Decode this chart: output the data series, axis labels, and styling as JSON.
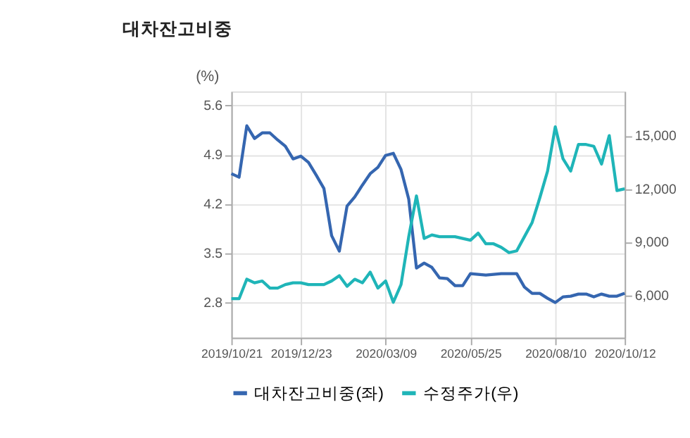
{
  "chart_data": {
    "type": "line",
    "title": "대차잔고비중",
    "ylabel": "(%)",
    "x": [
      "2019-10-21",
      "2019-10-28",
      "2019-11-04",
      "2019-11-11",
      "2019-11-18",
      "2019-11-25",
      "2019-12-02",
      "2019-12-09",
      "2019-12-16",
      "2019-12-23",
      "2019-12-30",
      "2020-01-06",
      "2020-01-13",
      "2020-01-20",
      "2020-01-27",
      "2020-02-03",
      "2020-02-10",
      "2020-02-17",
      "2020-02-24",
      "2020-03-02",
      "2020-03-09",
      "2020-03-16",
      "2020-03-23",
      "2020-03-30",
      "2020-04-06",
      "2020-04-13",
      "2020-04-20",
      "2020-04-27",
      "2020-05-04",
      "2020-05-11",
      "2020-05-18",
      "2020-05-25",
      "2020-06-01",
      "2020-06-08",
      "2020-06-15",
      "2020-06-22",
      "2020-06-29",
      "2020-07-06",
      "2020-07-13",
      "2020-07-20",
      "2020-07-27",
      "2020-08-03",
      "2020-08-10",
      "2020-08-17",
      "2020-08-24",
      "2020-08-31",
      "2020-09-07",
      "2020-09-14",
      "2020-09-21",
      "2020-09-28",
      "2020-10-05",
      "2020-10-12"
    ],
    "series": [
      {
        "name": "대차잔고비중(좌)",
        "color": "#3566b0",
        "values": [
          4.63,
          4.58,
          5.31,
          5.13,
          5.21,
          5.21,
          5.11,
          5.02,
          4.84,
          4.88,
          4.79,
          4.61,
          4.42,
          3.75,
          3.53,
          4.17,
          4.3,
          4.47,
          4.63,
          4.72,
          4.89,
          4.92,
          4.69,
          4.27,
          3.29,
          3.36,
          3.3,
          3.15,
          3.14,
          3.04,
          3.04,
          3.21,
          3.2,
          3.19,
          3.2,
          3.21,
          3.21,
          3.21,
          3.02,
          2.93,
          2.93,
          2.86,
          2.8,
          2.88,
          2.89,
          2.92,
          2.92,
          2.88,
          2.92,
          2.89,
          2.89,
          2.93
        ]
      },
      {
        "name": "수정주가(우)",
        "color": "#1fb5b8",
        "axis": "y2",
        "values": [
          5800,
          5800,
          6900,
          6700,
          6800,
          6400,
          6400,
          6600,
          6700,
          6700,
          6600,
          6600,
          6600,
          6800,
          7100,
          6500,
          6900,
          6700,
          7300,
          6400,
          6800,
          5600,
          6600,
          9300,
          11600,
          9200,
          9400,
          9300,
          9300,
          9300,
          9200,
          9100,
          9500,
          8900,
          8900,
          8700,
          8400,
          8500,
          9300,
          10100,
          11500,
          13000,
          15500,
          13700,
          13000,
          14500,
          14500,
          14400,
          13400,
          15000,
          11900,
          12000
        ]
      }
    ],
    "xlim": [
      "2019-10-21",
      "2020-10-12"
    ],
    "xticks": [
      {
        "value": "2019-10-21",
        "label": "2019/10/21"
      },
      {
        "value": "2019-12-23",
        "label": "2019/12/23"
      },
      {
        "value": "2020-03-09",
        "label": "2020/03/09"
      },
      {
        "value": "2020-05-25",
        "label": "2020/05/25"
      },
      {
        "value": "2020-08-10",
        "label": "2020/08/10"
      },
      {
        "value": "2020-10-12",
        "label": "2020/10/12"
      }
    ],
    "ylim": [
      2.3,
      5.8
    ],
    "yticks": [
      2.8,
      3.5,
      4.2,
      4.9,
      5.6
    ],
    "y2lim": [
      3600,
      17500
    ],
    "y2ticks": [
      {
        "value": 6000,
        "label": "6,000"
      },
      {
        "value": 9000,
        "label": "9,000"
      },
      {
        "value": 12000,
        "label": "12,000"
      },
      {
        "value": 15000,
        "label": "15,000"
      }
    ],
    "grid": true,
    "legend": "bottom",
    "line_style": "solid",
    "marker": "none"
  }
}
